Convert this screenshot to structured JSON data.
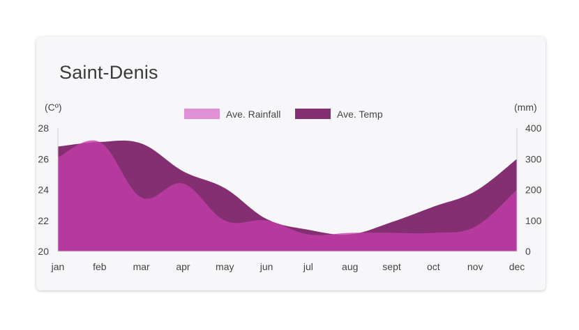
{
  "city_title": "Saint-Denis",
  "chart_data": {
    "type": "area",
    "title": "Saint-Denis",
    "categories": [
      "jan",
      "feb",
      "mar",
      "apr",
      "may",
      "jun",
      "jul",
      "aug",
      "sept",
      "oct",
      "nov",
      "dec"
    ],
    "y_left": {
      "unit_label": "(Cº)",
      "ylim": [
        20,
        28
      ],
      "ticks": [
        "20",
        "22",
        "24",
        "26",
        "28"
      ]
    },
    "y_right": {
      "unit_label": "(mm)",
      "ylim": [
        0,
        400
      ],
      "ticks": [
        "0",
        "100",
        "200",
        "300",
        "400"
      ]
    },
    "grid": false,
    "legend_position": "top-center",
    "series": [
      {
        "name": "Ave. Temp",
        "axis": "left",
        "color": "#852f73",
        "values": [
          26.8,
          27.1,
          27.0,
          25.2,
          24.1,
          22.1,
          21.4,
          21.1,
          21.9,
          22.9,
          23.9,
          26.0
        ]
      },
      {
        "name": "Ave. Rainfall",
        "axis": "right",
        "color": "#e091d6",
        "values": [
          305,
          355,
          175,
          220,
          100,
          100,
          55,
          60,
          60,
          60,
          80,
          200
        ]
      }
    ]
  }
}
